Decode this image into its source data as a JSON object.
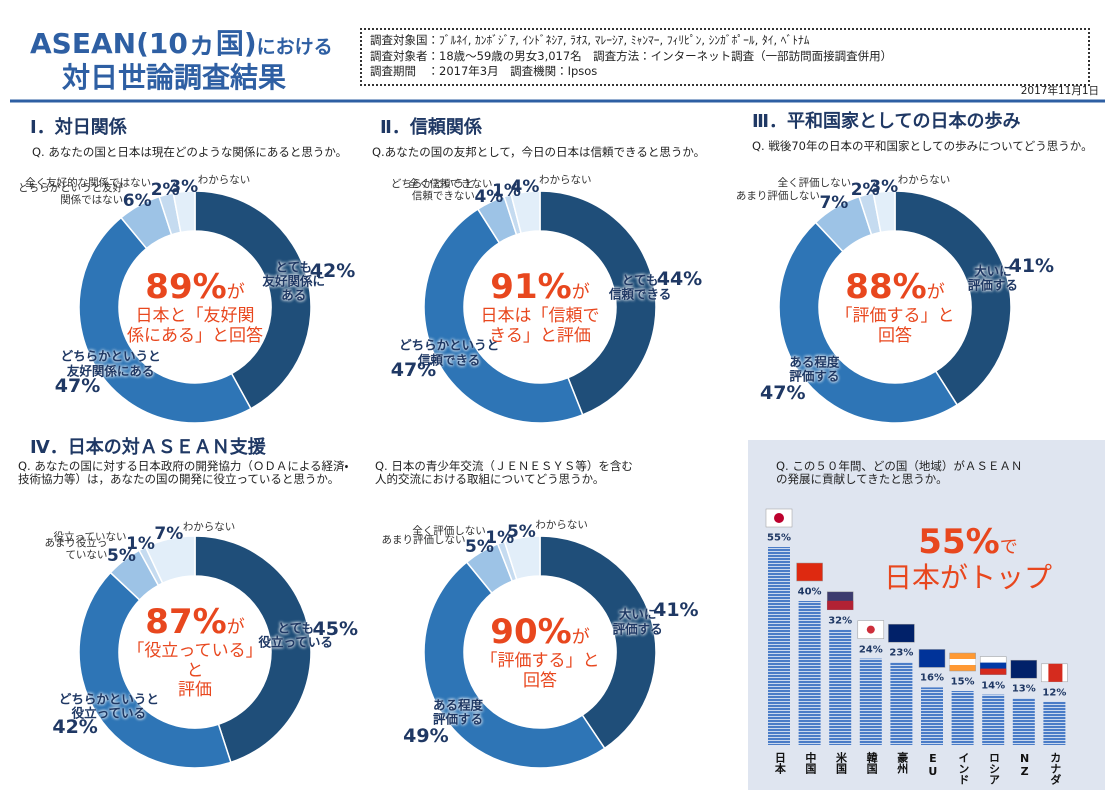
{
  "header": {
    "title_main": "ASEAN(10ヵ国)",
    "title_suffix": "における",
    "title_line2": "対日世論調査結果",
    "survey": [
      "調査対象国：ﾌﾞﾙﾈｲ, ｶﾝﾎﾞｼﾞｱ, ｲﾝﾄﾞﾈｼｱ, ﾗｵｽ, ﾏﾚｰｼｱ, ﾐｬﾝﾏｰ, ﾌｨﾘﾋﾟﾝ, ｼﾝｶﾞﾎﾟｰﾙ, ﾀｲ, ﾍﾞﾄﾅﾑ",
      "調査対象者：18歳～59歳の男女3,017名　調査方法：インターネット調査（一部訪問面接調査併用）",
      "調査期間　：2017年3月　調査機関：Ipsos"
    ],
    "date": "2017年11月1日"
  },
  "chart_data": [
    {
      "type": "donut",
      "title": "Ⅰ．対日関係",
      "question": "Q. あなたの国と日本は現在どのような関係にあると思うか。",
      "categories": [
        "とても\n友好関係に\nある",
        "どちらかというと\n友好関係にある",
        "どちらかというと友好\n関係ではない",
        "全く友好的な関係ではない",
        "わからない"
      ],
      "values": [
        42,
        47,
        6,
        2,
        3
      ],
      "value_labels": [
        "42%",
        "47%",
        "6%",
        "2%",
        "3%"
      ],
      "colors": [
        "#1f4e79",
        "#2e75b6",
        "#9dc3e6",
        "#c5dbf0",
        "#e2eef9"
      ],
      "center": {
        "highlight": "89%",
        "suffix": "が",
        "text": "日本と「友好関\n係にある」と回答"
      }
    },
    {
      "type": "donut",
      "title": "Ⅱ．信頼関係",
      "question": "Q.あなたの国の友邦として，今日の日本は信頼できると思うか。",
      "categories": [
        "とても\n信頼できる",
        "どちらかというと\n信頼できる",
        "どちらかというと\n信頼できない",
        "全く信頼できない",
        "わからない"
      ],
      "values": [
        44,
        47,
        4,
        1,
        4
      ],
      "value_labels": [
        "44%",
        "47%",
        "4%",
        "1%",
        "4%"
      ],
      "colors": [
        "#1f4e79",
        "#2e75b6",
        "#9dc3e6",
        "#c5dbf0",
        "#e2eef9"
      ],
      "center": {
        "highlight": "91%",
        "suffix": "が",
        "text": "日本は「信頼で\nきる」と評価"
      }
    },
    {
      "type": "donut",
      "title": "Ⅲ．平和国家としての日本の歩み",
      "question": "Q. 戦後70年の日本の平和国家としての歩みについてどう思うか。",
      "categories": [
        "大いに\n評価する",
        "ある程度\n評価する",
        "あまり評価しない",
        "全く評価しない",
        "わからない"
      ],
      "values": [
        41,
        47,
        7,
        2,
        3
      ],
      "value_labels": [
        "41%",
        "47%",
        "7%",
        "2%",
        "3%"
      ],
      "colors": [
        "#1f4e79",
        "#2e75b6",
        "#9dc3e6",
        "#c5dbf0",
        "#e2eef9"
      ],
      "center": {
        "highlight": "88%",
        "suffix": "が",
        "text": "「評価する」と\n回答"
      }
    },
    {
      "type": "donut",
      "title": "Ⅳ．日本の対ＡＳＥＡＮ支援",
      "question": "Q. あなたの国に対する日本政府の開発協力（ＯＤＡによる経済・技術協力等）は，あなたの国の開発に役立っていると思うか。",
      "categories": [
        "とても\n役立っている",
        "どちらかというと\n役立っている",
        "あまり役立っ\nていない",
        "役立っていない",
        "わからない"
      ],
      "values": [
        45,
        42,
        5,
        1,
        7
      ],
      "value_labels": [
        "45%",
        "42%",
        "5%",
        "1%",
        "7%"
      ],
      "colors": [
        "#1f4e79",
        "#2e75b6",
        "#9dc3e6",
        "#c5dbf0",
        "#e2eef9"
      ],
      "center": {
        "highlight": "87%",
        "suffix": "が",
        "text": "「役立っている」と\n評価"
      }
    },
    {
      "type": "donut",
      "question": "Q. 日本の青少年交流（ＪＥＮＥＳＹＳ等）を含む\n人的交流における取組についてどう思うか。",
      "categories": [
        "大いに\n評価する",
        "ある程度\n評価する",
        "あまり評価しない",
        "全く評価しない",
        "わからない"
      ],
      "values": [
        41,
        49,
        5,
        1,
        5
      ],
      "value_labels": [
        "41%",
        "49%",
        "5%",
        "1%",
        "5%"
      ],
      "colors": [
        "#1f4e79",
        "#2e75b6",
        "#9dc3e6",
        "#c5dbf0",
        "#e2eef9"
      ],
      "center": {
        "highlight": "90%",
        "suffix": "が",
        "text": "「評価する」と\n回答"
      }
    },
    {
      "type": "bar",
      "question": "Q. この５０年間、どの国（地域）がＡＳＥＡＮ\nの発展に貢献してきたと思うか。",
      "categories": [
        "日本",
        "中国",
        "米国",
        "韓国",
        "豪州",
        "EU",
        "インド",
        "ロシア",
        "NZ",
        "カナダ"
      ],
      "values": [
        55,
        40,
        32,
        24,
        23,
        16,
        15,
        14,
        13,
        12
      ],
      "value_labels": [
        "55%",
        "40%",
        "32%",
        "24%",
        "23%",
        "16%",
        "15%",
        "14%",
        "13%",
        "12%"
      ],
      "color": "#4a7cc7",
      "annotation": {
        "highlight": "55%",
        "suffix": "で",
        "text": "日本がトップ"
      }
    }
  ]
}
